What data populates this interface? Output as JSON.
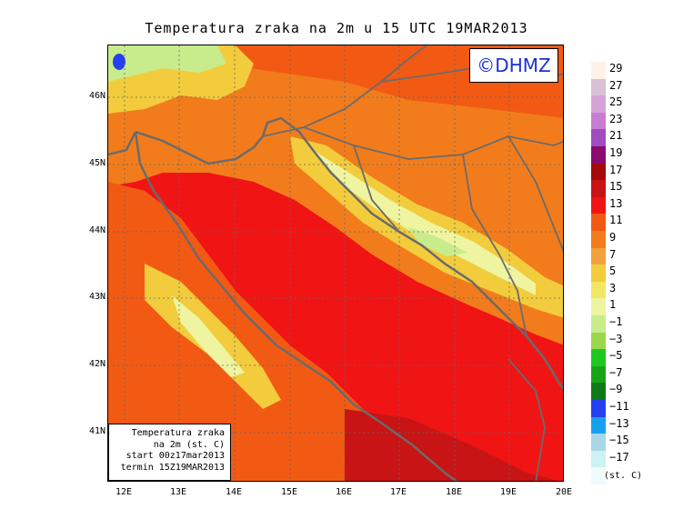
{
  "title": "Temperatura zraka na 2m u 15 UTC 19MAR2013",
  "logo_text": "©DHMZ",
  "info_box": {
    "line1": "Temperatura zraka",
    "line2": "na 2m (st. C)",
    "line3": "start 00z17mar2013",
    "line4": "termin 15Z19MAR2013"
  },
  "lat_labels": [
    "46N",
    "45N",
    "44N",
    "43N",
    "42N",
    "41N"
  ],
  "lon_labels": [
    "12E",
    "13E",
    "14E",
    "15E",
    "16E",
    "17E",
    "18E",
    "19E",
    "20E"
  ],
  "legend": {
    "levels": [
      "29",
      "27",
      "25",
      "23",
      "21",
      "19",
      "17",
      "15",
      "13",
      "11",
      "9",
      "7",
      "5",
      "3",
      "1",
      "−1",
      "−3",
      "−5",
      "−7",
      "−9",
      "−11",
      "−13",
      "−15",
      "−17"
    ],
    "colors": [
      "#fff1e6",
      "#d9c0d4",
      "#d6a3d6",
      "#c77dd0",
      "#a14cc0",
      "#8a0a70",
      "#a30a0a",
      "#c81414",
      "#f01414",
      "#f25a14",
      "#f27c1c",
      "#f2a03a",
      "#f2cc3c",
      "#f2e666",
      "#eef4a0",
      "#c8ec8c",
      "#9ad84a",
      "#1ec81e",
      "#18a418",
      "#107a18",
      "#2440f0",
      "#18a0f0",
      "#a8d8e8",
      "#ccf2f2",
      "#f0fbfb"
    ],
    "unit": "(st. C)"
  },
  "colors": {
    "sea_hot": "#f01414",
    "sea_warm": "#f25a14",
    "land_mild": "#f2a03a",
    "coast_cool": "#f2cc3c",
    "mountain_cold": "#eef4a0",
    "border_lines": "#6b6b6b"
  }
}
